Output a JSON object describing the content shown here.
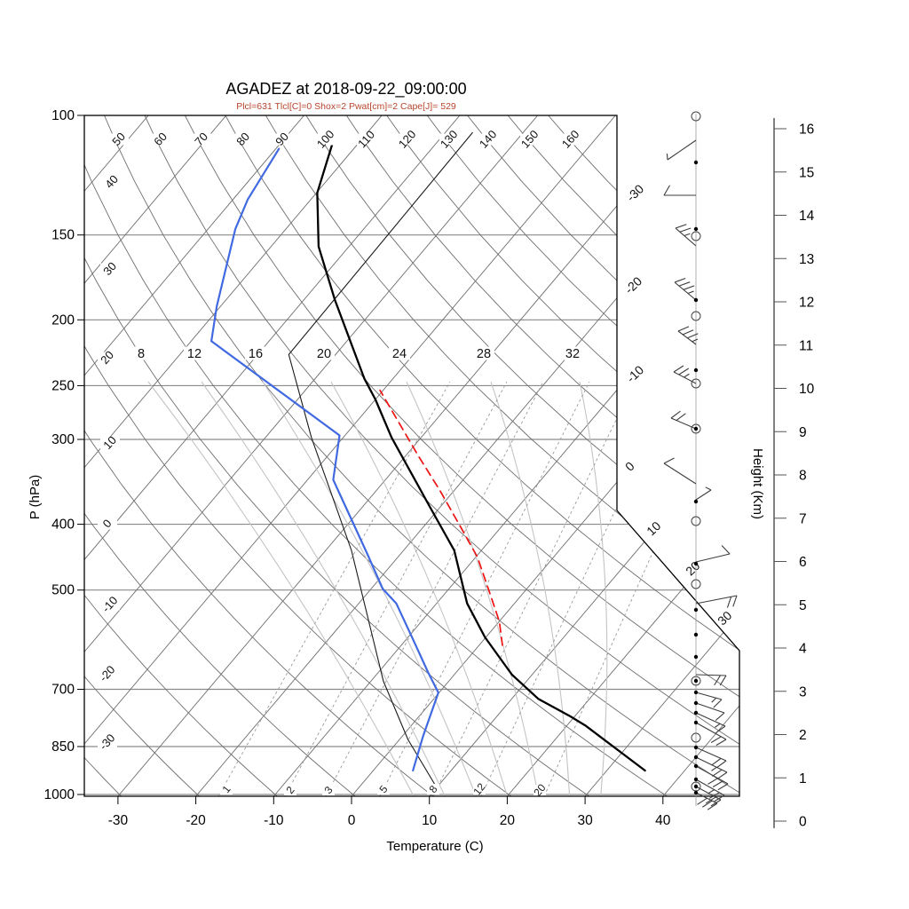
{
  "title": "AGADEZ at 2018-09-22_09:00:00",
  "subtitle": "Plcl=631 Tlcl[C]=0 Shox=2 Pwat[cm]=2 Cape[J]= 529",
  "colors": {
    "temperature": "#000000",
    "dewpoint": "#4169e1",
    "parcel": "#ee1111",
    "wet_bulb": "#1a1a1a",
    "grid": "#6e6e6e",
    "pressure_line": "#8a8a8a",
    "moist_adiabat": "#c4c4c4",
    "mixing_ratio": "#9a9a9a",
    "frame": "#000000",
    "subtitle": "#b7452c",
    "barb": "#3c3c3c"
  },
  "axes": {
    "pressure": {
      "label": "P (hPa)",
      "ticks": [
        100,
        150,
        200,
        250,
        300,
        400,
        500,
        700,
        850,
        1000
      ]
    },
    "temperature": {
      "label": "Temperature (C)",
      "ticks": [
        -30,
        -20,
        -10,
        0,
        10,
        20,
        30,
        40
      ]
    },
    "height": {
      "label": "Height (Km)",
      "ticks": [
        0,
        1,
        2,
        3,
        4,
        5,
        6,
        7,
        8,
        9,
        10,
        11,
        12,
        13,
        14,
        15,
        16
      ]
    }
  },
  "chart_data": {
    "type": "line",
    "subtype": "skewt_logp_sounding",
    "station": "AGADEZ",
    "datetime": "2018-09-22_09:00:00",
    "indices": {
      "Plcl": 631,
      "Tlcl_C": 0,
      "Shox": 2,
      "Pwat_cm": 2,
      "Cape_J": 529
    },
    "dry_adiabat_labels_top": [
      50,
      60,
      70,
      80,
      90,
      100,
      110,
      120,
      130,
      140,
      150,
      160
    ],
    "dry_adiabat_labels_left": [
      40,
      30,
      20,
      10,
      0,
      -10,
      -20,
      -30
    ],
    "isotherm_labels_right": [
      -30,
      -20,
      -10,
      0
    ],
    "isotherm_labels_corner": [
      10,
      20,
      30
    ],
    "moist_adiabat_labels": [
      8,
      12,
      16,
      20,
      24,
      28,
      32
    ],
    "mixing_ratio_labels": [
      1,
      2,
      3,
      5,
      8,
      12,
      20
    ],
    "isotherm_values": [
      -100,
      -90,
      -80,
      -70,
      -60,
      -50,
      -40,
      -30,
      -20,
      -10,
      0,
      10,
      20,
      30,
      40
    ],
    "series": {
      "temperature": [
        [
          922,
          34.9
        ],
        [
          791,
          22.3
        ],
        [
          767,
          19.4
        ],
        [
          723,
          13.4
        ],
        [
          666,
          7.4
        ],
        [
          587,
          -0.1
        ],
        [
          523,
          -6.1
        ],
        [
          437,
          -13.5
        ],
        [
          376,
          -21.5
        ],
        [
          298,
          -33.8
        ],
        [
          262,
          -40.0
        ],
        [
          244,
          -43.7
        ],
        [
          187,
          -56.0
        ],
        [
          156,
          -63.9
        ],
        [
          130,
          -69.9
        ],
        [
          110,
          -73.3
        ]
      ],
      "dewpoint": [
        [
          922,
          5.1
        ],
        [
          822,
          2.7
        ],
        [
          708,
          -0.1
        ],
        [
          661,
          -3.6
        ],
        [
          589,
          -9.3
        ],
        [
          523,
          -15.2
        ],
        [
          498,
          -18.5
        ],
        [
          443,
          -24.2
        ],
        [
          344,
          -36.7
        ],
        [
          296,
          -40.7
        ],
        [
          215,
          -67.4
        ],
        [
          191,
          -70.5
        ],
        [
          147,
          -76.5
        ],
        [
          133,
          -78.1
        ],
        [
          112,
          -79.6
        ]
      ],
      "wet_bulb": [
        [
          984,
          10.4
        ],
        [
          830,
          1.1
        ],
        [
          681,
          -8.4
        ],
        [
          437,
          -26.7
        ],
        [
          395,
          -31.3
        ],
        [
          298,
          -44.1
        ],
        [
          225,
          -56.0
        ],
        [
          106,
          -56.5
        ]
      ],
      "parcel": [
        [
          603,
          3.0
        ],
        [
          556,
          0.0
        ],
        [
          504,
          -4.4
        ],
        [
          447,
          -9.8
        ],
        [
          403,
          -15.3
        ],
        [
          357,
          -21.8
        ],
        [
          317,
          -28.4
        ],
        [
          254,
          -40.4
        ]
      ]
    },
    "wind_column": {
      "markers": [
        {
          "y": 131,
          "t": "circle"
        },
        {
          "y": 183,
          "t": "dot"
        },
        {
          "y": 258,
          "t": "dot"
        },
        {
          "y": 266,
          "t": "circle"
        },
        {
          "y": 338,
          "t": "dot"
        },
        {
          "y": 356,
          "t": "circle"
        },
        {
          "y": 417,
          "t": "dot"
        },
        {
          "y": 432,
          "t": "circle"
        },
        {
          "y": 483,
          "t": "circled-dot"
        },
        {
          "y": 565,
          "t": "dot"
        },
        {
          "y": 587,
          "t": "circle"
        },
        {
          "y": 635,
          "t": "dot"
        },
        {
          "y": 658,
          "t": "circle"
        },
        {
          "y": 687,
          "t": "dot"
        },
        {
          "y": 715,
          "t": "dot"
        },
        {
          "y": 740,
          "t": "dot"
        },
        {
          "y": 767,
          "t": "circled-dot"
        },
        {
          "y": 780,
          "t": "dot"
        },
        {
          "y": 792,
          "t": "dot"
        },
        {
          "y": 803,
          "t": "dot"
        },
        {
          "y": 814,
          "t": "dot"
        },
        {
          "y": 831,
          "t": "circle"
        },
        {
          "y": 842,
          "t": "dot"
        },
        {
          "y": 853,
          "t": "dot"
        },
        {
          "y": 863,
          "t": "dot"
        },
        {
          "y": 878,
          "t": "dot"
        },
        {
          "y": 886,
          "t": "circled-dot"
        },
        {
          "y": 893,
          "t": "dot"
        }
      ],
      "barbs": [
        {
          "y": 158,
          "tip": [
            752,
            180
          ],
          "full": 0,
          "half": 1,
          "side": 1
        },
        {
          "y": 220,
          "tip": [
            748,
            220
          ],
          "full": 1,
          "half": 0,
          "side": 1
        },
        {
          "y": 277,
          "tip": [
            761,
            257
          ],
          "full": 2,
          "half": 1,
          "side": 1
        },
        {
          "y": 338,
          "tip": [
            760,
            318
          ],
          "full": 3,
          "half": 1,
          "side": 1
        },
        {
          "y": 388,
          "tip": [
            764,
            373
          ],
          "full": 3,
          "half": 1,
          "side": 1
        },
        {
          "y": 432,
          "tip": [
            759,
            419
          ],
          "full": 2,
          "half": 1,
          "side": 1
        },
        {
          "y": 483,
          "tip": [
            756,
            471
          ],
          "full": 2,
          "half": 0,
          "side": 1
        },
        {
          "y": 545,
          "tip": [
            748,
            522
          ],
          "full": 1,
          "half": 0,
          "side": 1
        },
        {
          "y": 563,
          "tip": [
            801,
            552
          ],
          "full": 0,
          "half": 1,
          "side": -1
        },
        {
          "y": 633,
          "tip": [
            822,
            624
          ],
          "full": 1,
          "half": 0,
          "side": -1
        },
        {
          "y": 680,
          "tip": [
            830,
            671
          ],
          "full": 2,
          "half": 0,
          "side": 1
        },
        {
          "y": 760,
          "tip": [
            818,
            761
          ],
          "full": 2,
          "half": 0,
          "side": 1
        },
        {
          "y": 780,
          "tip": [
            813,
            788
          ],
          "full": 1,
          "half": 1,
          "side": 1
        },
        {
          "y": 792,
          "tip": [
            816,
            803
          ],
          "full": 1,
          "half": 0,
          "side": 1
        },
        {
          "y": 803,
          "tip": [
            817,
            818
          ],
          "full": 1,
          "half": 1,
          "side": 1
        },
        {
          "y": 814,
          "tip": [
            818,
            833
          ],
          "full": 2,
          "half": 0,
          "side": 1
        },
        {
          "y": 842,
          "tip": [
            818,
            857
          ],
          "full": 2,
          "half": 0,
          "side": 1
        },
        {
          "y": 853,
          "tip": [
            819,
            870
          ],
          "full": 2,
          "half": 1,
          "side": 1
        },
        {
          "y": 863,
          "tip": [
            820,
            883
          ],
          "full": 3,
          "half": 0,
          "side": 1
        },
        {
          "y": 878,
          "tip": [
            816,
            896
          ],
          "full": 2,
          "half": 1,
          "side": 1
        },
        {
          "y": 886,
          "tip": [
            812,
            901
          ],
          "full": 2,
          "half": 0,
          "side": 1
        },
        {
          "y": 893,
          "tip": [
            808,
            905
          ],
          "full": 3,
          "half": 0,
          "side": 1
        }
      ]
    }
  }
}
